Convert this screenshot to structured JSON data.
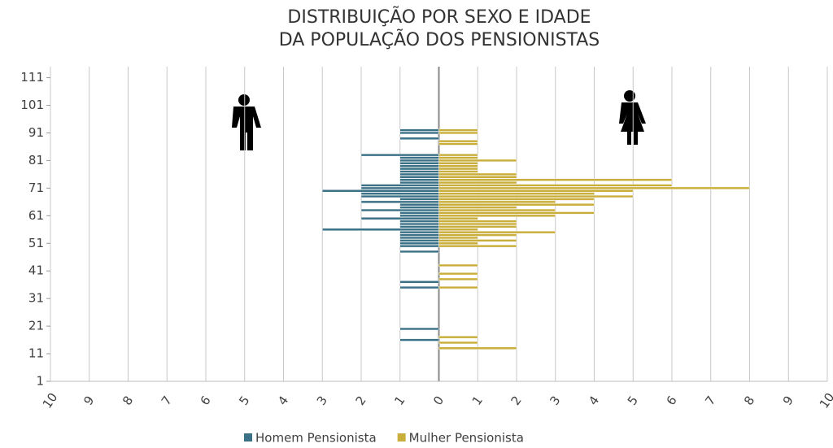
{
  "chart_data": {
    "type": "pyramid",
    "title": [
      "DISTRIBUIÇÃO POR SEXO E IDADE",
      "DA POPULAÇÃO DOS PENSIONISTAS"
    ],
    "y": [
      11,
      12,
      13,
      14,
      15,
      16,
      17,
      18,
      19,
      20,
      21,
      22,
      23,
      24,
      25,
      26,
      27,
      28,
      29,
      30,
      31,
      32,
      33,
      34,
      35,
      36,
      37,
      38,
      39,
      40,
      41,
      42,
      43,
      44,
      45,
      46,
      47,
      48,
      49,
      50,
      51,
      52,
      53,
      54,
      55,
      56,
      57,
      58,
      59,
      60,
      61,
      62,
      63,
      64,
      65,
      66,
      67,
      68,
      69,
      70,
      71,
      72,
      73,
      74,
      75,
      76,
      77,
      78,
      79,
      80,
      81,
      82,
      83,
      84,
      85,
      86,
      87,
      88,
      89,
      90,
      91,
      92,
      93
    ],
    "series": [
      {
        "name": "Homem Pensionista",
        "color": "#3b7186",
        "values": [
          0,
          0,
          0,
          0,
          0,
          -1,
          0,
          0,
          0,
          -1,
          0,
          0,
          0,
          0,
          0,
          0,
          0,
          0,
          0,
          0,
          0,
          0,
          0,
          0,
          -1,
          0,
          -1,
          0,
          0,
          0,
          0,
          0,
          0,
          0,
          0,
          0,
          0,
          -1,
          0,
          -1,
          -1,
          -1,
          -1,
          -1,
          -1,
          -3,
          -1,
          -1,
          -1,
          -2,
          -1,
          -1,
          -2,
          -1,
          -1,
          -2,
          -1,
          -2,
          -2,
          -3,
          -2,
          -2,
          -1,
          -1,
          -1,
          -1,
          -1,
          -1,
          -1,
          -1,
          -1,
          -1,
          -2,
          0,
          0,
          0,
          0,
          0,
          -1,
          0,
          -1,
          -1,
          0
        ]
      },
      {
        "name": "Mulher Pensionista",
        "color": "#c9ae3c",
        "values": [
          0,
          0,
          2,
          0,
          1,
          0,
          1,
          0,
          0,
          0,
          0,
          0,
          0,
          0,
          0,
          0,
          0,
          0,
          0,
          0,
          0,
          0,
          0,
          0,
          1,
          0,
          0,
          1,
          0,
          1,
          0,
          0,
          1,
          0,
          0,
          0,
          0,
          0,
          0,
          2,
          1,
          2,
          1,
          2,
          3,
          1,
          2,
          2,
          2,
          1,
          3,
          4,
          3,
          2,
          4,
          3,
          4,
          5,
          4,
          5,
          8,
          6,
          2,
          6,
          2,
          2,
          1,
          1,
          1,
          1,
          2,
          1,
          1,
          0,
          0,
          0,
          1,
          1,
          0,
          0,
          1,
          1,
          0
        ]
      }
    ],
    "xlim": [
      -10,
      10
    ],
    "xticks": [
      {
        "value": -10,
        "label": "10"
      },
      {
        "value": -9,
        "label": "9"
      },
      {
        "value": -8,
        "label": "8"
      },
      {
        "value": -7,
        "label": "7"
      },
      {
        "value": -6,
        "label": "6"
      },
      {
        "value": -5,
        "label": "5"
      },
      {
        "value": -4,
        "label": "4"
      },
      {
        "value": -3,
        "label": "3"
      },
      {
        "value": -2,
        "label": "2"
      },
      {
        "value": -1,
        "label": "1"
      },
      0,
      1,
      2,
      3,
      4,
      5,
      6,
      7,
      8,
      9,
      10
    ],
    "ylim": [
      1,
      115
    ],
    "yticks": [
      1,
      11,
      21,
      31,
      41,
      51,
      61,
      71,
      81,
      91,
      101,
      111
    ],
    "grid": true
  }
}
